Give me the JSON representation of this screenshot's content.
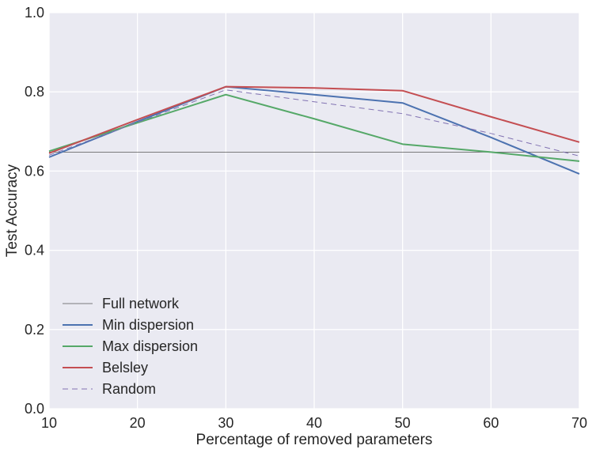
{
  "chart_data": {
    "type": "line",
    "title": "",
    "xlabel": "Percentage of removed parameters",
    "ylabel": "Test Accuracy",
    "xlim": [
      10,
      70
    ],
    "ylim": [
      0.0,
      1.0
    ],
    "x_ticks": [
      "10",
      "20",
      "30",
      "40",
      "50",
      "60",
      "70"
    ],
    "y_ticks": [
      "0.0",
      "0.2",
      "0.4",
      "0.6",
      "0.8",
      "1.0"
    ],
    "grid": true,
    "legend_position": "lower-left",
    "series": [
      {
        "name": "Full network",
        "x": [
          10,
          70
        ],
        "values": [
          0.648,
          0.648
        ],
        "color": "#555555",
        "style": "solid",
        "width": 0.8
      },
      {
        "name": "Min dispersion",
        "x": [
          10,
          20,
          30,
          40,
          50,
          60,
          70
        ],
        "values": [
          0.635,
          0.725,
          0.813,
          0.793,
          0.772,
          0.685,
          0.593
        ],
        "color": "#4c72b0",
        "style": "solid",
        "width": 2
      },
      {
        "name": "Max dispersion",
        "x": [
          10,
          20,
          30,
          40,
          50,
          60,
          70
        ],
        "values": [
          0.65,
          0.722,
          0.793,
          0.732,
          0.668,
          0.648,
          0.625
        ],
        "color": "#55a868",
        "style": "solid",
        "width": 2
      },
      {
        "name": "Belsley",
        "x": [
          10,
          20,
          30,
          40,
          50,
          60,
          70
        ],
        "values": [
          0.645,
          0.73,
          0.813,
          0.81,
          0.803,
          0.737,
          0.673
        ],
        "color": "#c44e52",
        "style": "solid",
        "width": 2
      },
      {
        "name": "Random",
        "x": [
          10,
          20,
          30,
          40,
          50,
          60,
          70
        ],
        "values": [
          0.64,
          0.723,
          0.805,
          0.775,
          0.745,
          0.695,
          0.638
        ],
        "color": "#8172b2",
        "style": "dashed",
        "width": 1
      }
    ]
  }
}
